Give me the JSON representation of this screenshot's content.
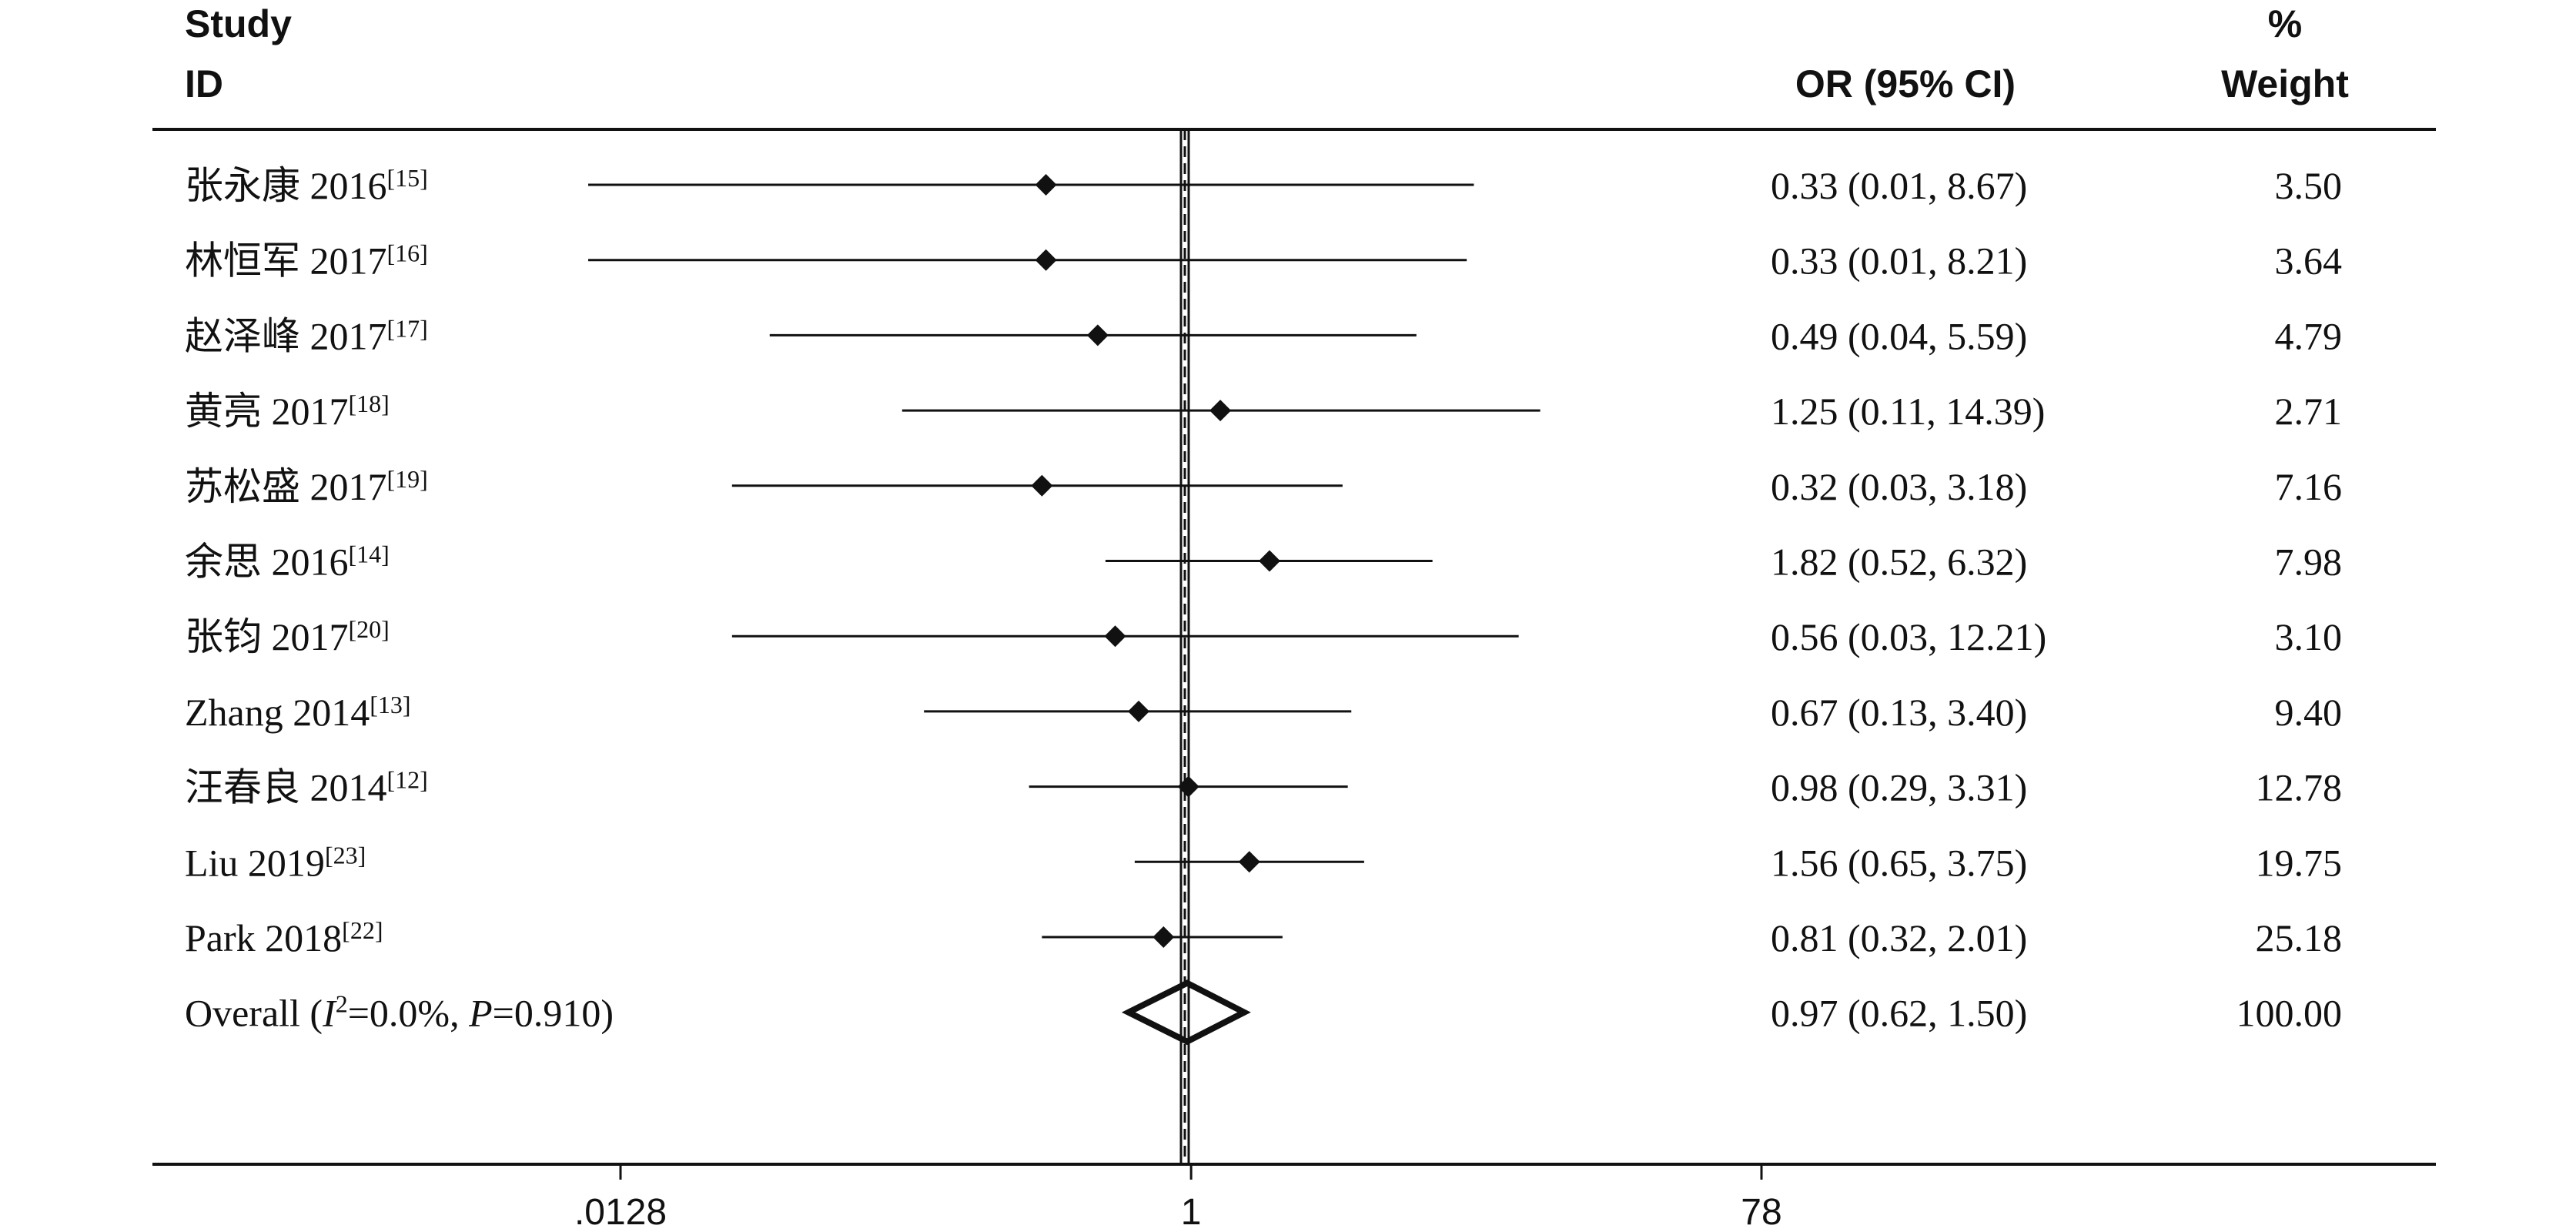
{
  "chart_data": {
    "type": "forest",
    "headers": {
      "study": "Study",
      "id": "ID",
      "or": "OR (95% CI)",
      "pct": "%",
      "weight": "Weight"
    },
    "xscale": "log",
    "xlim": [
      0.0128,
      78
    ],
    "xticks": [
      ".0128",
      "1",
      "78"
    ],
    "null_line": 1,
    "studies": [
      {
        "name": "张永康 2016",
        "ref": "[15]",
        "or": 0.33,
        "lo": 0.01,
        "hi": 8.67,
        "or_text": "0.33 (0.01, 8.67)",
        "weight": "3.50"
      },
      {
        "name": "林恒军 2017",
        "ref": "[16]",
        "or": 0.33,
        "lo": 0.01,
        "hi": 8.21,
        "or_text": "0.33 (0.01, 8.21)",
        "weight": "3.64"
      },
      {
        "name": "赵泽峰 2017",
        "ref": "[17]",
        "or": 0.49,
        "lo": 0.04,
        "hi": 5.59,
        "or_text": "0.49 (0.04, 5.59)",
        "weight": "4.79"
      },
      {
        "name": "黄亮 2017",
        "ref": "[18]",
        "or": 1.25,
        "lo": 0.11,
        "hi": 14.39,
        "or_text": "1.25 (0.11, 14.39)",
        "weight": "2.71"
      },
      {
        "name": "苏松盛 2017",
        "ref": "[19]",
        "or": 0.32,
        "lo": 0.03,
        "hi": 3.18,
        "or_text": "0.32 (0.03, 3.18)",
        "weight": "7.16"
      },
      {
        "name": "余思 2016",
        "ref": "[14]",
        "or": 1.82,
        "lo": 0.52,
        "hi": 6.32,
        "or_text": "1.82 (0.52, 6.32)",
        "weight": "7.98"
      },
      {
        "name": "张钧 2017",
        "ref": "[20]",
        "or": 0.56,
        "lo": 0.03,
        "hi": 12.21,
        "or_text": "0.56 (0.03, 12.21)",
        "weight": "3.10"
      },
      {
        "name": "Zhang 2014",
        "ref": "[13]",
        "or": 0.67,
        "lo": 0.13,
        "hi": 3.4,
        "or_text": "0.67 (0.13, 3.40)",
        "weight": "9.40"
      },
      {
        "name": "汪春良 2014",
        "ref": "[12]",
        "or": 0.98,
        "lo": 0.29,
        "hi": 3.31,
        "or_text": "0.98 (0.29, 3.31)",
        "weight": "12.78"
      },
      {
        "name": "Liu 2019",
        "ref": "[23]",
        "or": 1.56,
        "lo": 0.65,
        "hi": 3.75,
        "or_text": "1.56 (0.65, 3.75)",
        "weight": "19.75"
      },
      {
        "name": "Park 2018",
        "ref": "[22]",
        "or": 0.81,
        "lo": 0.32,
        "hi": 2.01,
        "or_text": "0.81 (0.32, 2.01)",
        "weight": "25.18"
      }
    ],
    "overall": {
      "label_prefix": "Overall  (",
      "i2_symbol": "I",
      "i2_sup": "2",
      "i2_value": "=0.0%, ",
      "p_symbol": "P",
      "p_value": "=0.910)",
      "or": 0.97,
      "lo": 0.62,
      "hi": 1.5,
      "or_text": "0.97 (0.62, 1.50)",
      "weight": "100.00"
    }
  }
}
